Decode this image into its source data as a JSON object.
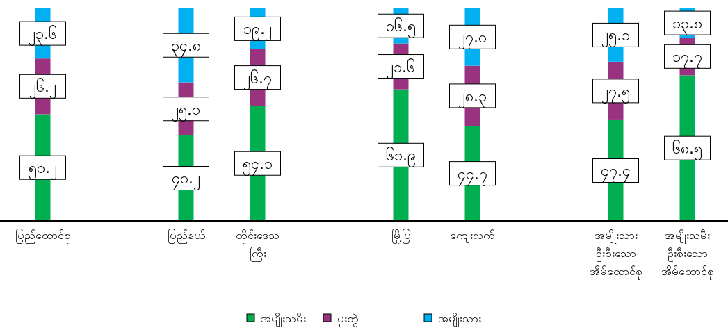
{
  "chart_data": {
    "type": "bar",
    "stacked": true,
    "data_labels": true,
    "legend": "bottom",
    "categories": [
      "ပြည်ထောင်စု",
      null,
      "ပြည်နယ်",
      "တိုင်းဒေသ\nကြီး",
      null,
      "မြို့ပြ",
      "ကျေးလက်",
      null,
      "အမျိုးသား\nဦးစီးသော\nအိမ်ထောင်စု",
      "အမျိုးသမီး\nဦးစီးသော\nအိမ်ထောင်စု"
    ],
    "series": [
      {
        "name": "အမျိုးသမီး",
        "color": "#00b050",
        "values": [
          50.2,
          null,
          40.2,
          54.1,
          null,
          61.9,
          44.7,
          null,
          47.4,
          68.5
        ],
        "value_labels": [
          "၅၀.၂",
          null,
          "၄၀.၂",
          "၅၄.၁",
          null,
          "၆၁.၉",
          "၄၄.၇",
          null,
          "၄၇.၄",
          "၆၈.၅"
        ]
      },
      {
        "name": "ပူးတွဲ",
        "color": "#993380",
        "values": [
          26.2,
          null,
          25.0,
          26.7,
          null,
          21.6,
          28.3,
          null,
          27.5,
          17.7
        ],
        "value_labels": [
          "၂၆.၂",
          null,
          "၂၅.၀",
          "၂၆.၇",
          null,
          "၂၁.၆",
          "၂၈.၃",
          null,
          "၂၇.၅",
          "၁၇.၇"
        ]
      },
      {
        "name": "အမျိုးသား",
        "color": "#00b0f0",
        "values": [
          23.6,
          null,
          34.8,
          19.2,
          null,
          16.5,
          27.0,
          null,
          25.1,
          13.8
        ],
        "value_labels": [
          "၂၃.၆",
          null,
          "၃၄.၈",
          "၁၉.၂",
          null,
          "၁၆.၅",
          "၂၇.၀",
          null,
          "၂၅.၁",
          "၁၃.၈"
        ]
      }
    ]
  }
}
